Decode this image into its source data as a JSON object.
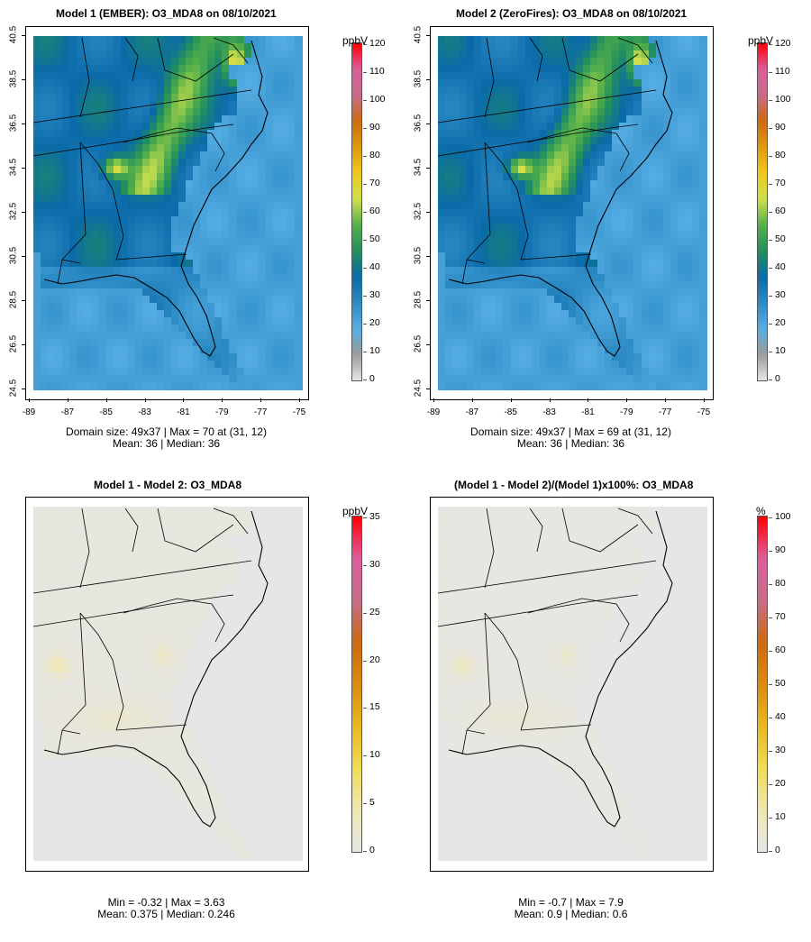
{
  "panels": [
    {
      "id": "p1",
      "title": "Model 1 (EMBER): O3_MDA8 on 08/10/2021",
      "unit": "ppbV",
      "colorbar_ticks": [
        "0",
        "10",
        "20",
        "30",
        "40",
        "50",
        "60",
        "70",
        "80",
        "90",
        "100",
        "110",
        "120"
      ],
      "y_ticks": [
        "24.5",
        "26.5",
        "28.5",
        "30.5",
        "32.5",
        "34.5",
        "36.5",
        "38.5",
        "40.5"
      ],
      "x_ticks": [
        "-89",
        "-87",
        "-85",
        "-83",
        "-81",
        "-79",
        "-77",
        "-75"
      ],
      "stats_line1": "Domain size: 49x37 | Max = 70 at (31, 12)",
      "stats_line2": "Mean: 36 |  Median: 36"
    },
    {
      "id": "p2",
      "title": "Model 2 (ZeroFires): O3_MDA8 on 08/10/2021",
      "unit": "ppbV",
      "colorbar_ticks": [
        "0",
        "10",
        "20",
        "30",
        "40",
        "50",
        "60",
        "70",
        "80",
        "90",
        "100",
        "110",
        "120"
      ],
      "y_ticks": [
        "24.5",
        "26.5",
        "28.5",
        "30.5",
        "32.5",
        "34.5",
        "36.5",
        "38.5",
        "40.5"
      ],
      "x_ticks": [
        "-89",
        "-87",
        "-85",
        "-83",
        "-81",
        "-79",
        "-77",
        "-75"
      ],
      "stats_line1": "Domain size: 49x37 | Max = 69 at (31, 12)",
      "stats_line2": "Mean: 36 |  Median: 36"
    },
    {
      "id": "p3",
      "title": "Model 1 - Model 2: O3_MDA8",
      "unit": "ppbV",
      "colorbar_ticks": [
        "0",
        "5",
        "10",
        "15",
        "20",
        "25",
        "30",
        "35"
      ],
      "stats_line1": "Min = -0.32 | Max = 3.63",
      "stats_line2": "Mean: 0.375 |  Median: 0.246"
    },
    {
      "id": "p4",
      "title": "(Model 1 - Model 2)/(Model 1)x100%: O3_MDA8",
      "unit": "%",
      "colorbar_ticks": [
        "0",
        "10",
        "20",
        "30",
        "40",
        "50",
        "60",
        "70",
        "80",
        "90",
        "100"
      ],
      "stats_line1": "Min = -0.7 | Max = 7.9",
      "stats_line2": "Mean: 0.9 |  Median: 0.6"
    }
  ],
  "chart_data": [
    {
      "type": "heatmap",
      "title": "Model 1 (EMBER): O3_MDA8 on 08/10/2021",
      "variable": "O3_MDA8",
      "unit": "ppbV",
      "xlim": [
        -89,
        -75
      ],
      "ylim": [
        24.5,
        40.5
      ],
      "colorbar_range": [
        0,
        120
      ],
      "domain_size": "49x37",
      "max": 70,
      "max_location": [
        31,
        12
      ],
      "mean": 36,
      "median": 36
    },
    {
      "type": "heatmap",
      "title": "Model 2 (ZeroFires): O3_MDA8 on 08/10/2021",
      "variable": "O3_MDA8",
      "unit": "ppbV",
      "xlim": [
        -89,
        -75
      ],
      "ylim": [
        24.5,
        40.5
      ],
      "colorbar_range": [
        0,
        120
      ],
      "domain_size": "49x37",
      "max": 69,
      "max_location": [
        31,
        12
      ],
      "mean": 36,
      "median": 36
    },
    {
      "type": "heatmap",
      "title": "Model 1 - Model 2: O3_MDA8",
      "unit": "ppbV",
      "colorbar_range": [
        0,
        35
      ],
      "min": -0.32,
      "max": 3.63,
      "mean": 0.375,
      "median": 0.246
    },
    {
      "type": "heatmap",
      "title": "(Model 1 - Model 2)/(Model 1)x100%: O3_MDA8",
      "unit": "%",
      "colorbar_range": [
        0,
        100
      ],
      "min": -0.7,
      "max": 7.9,
      "mean": 0.9,
      "median": 0.6
    }
  ],
  "colors": {
    "ocean": "#56aee4",
    "diff_background": "#e6e6e6",
    "colormap": [
      "#e6e6e6",
      "#9a9a9a",
      "#56aee4",
      "#2c8ac4",
      "#0a6aa8",
      "#23905c",
      "#56b04a",
      "#cfe04e",
      "#f0c81a",
      "#e09a0e",
      "#cc6a10",
      "#c86c8a",
      "#dc5d9e",
      "#ff0000"
    ]
  }
}
